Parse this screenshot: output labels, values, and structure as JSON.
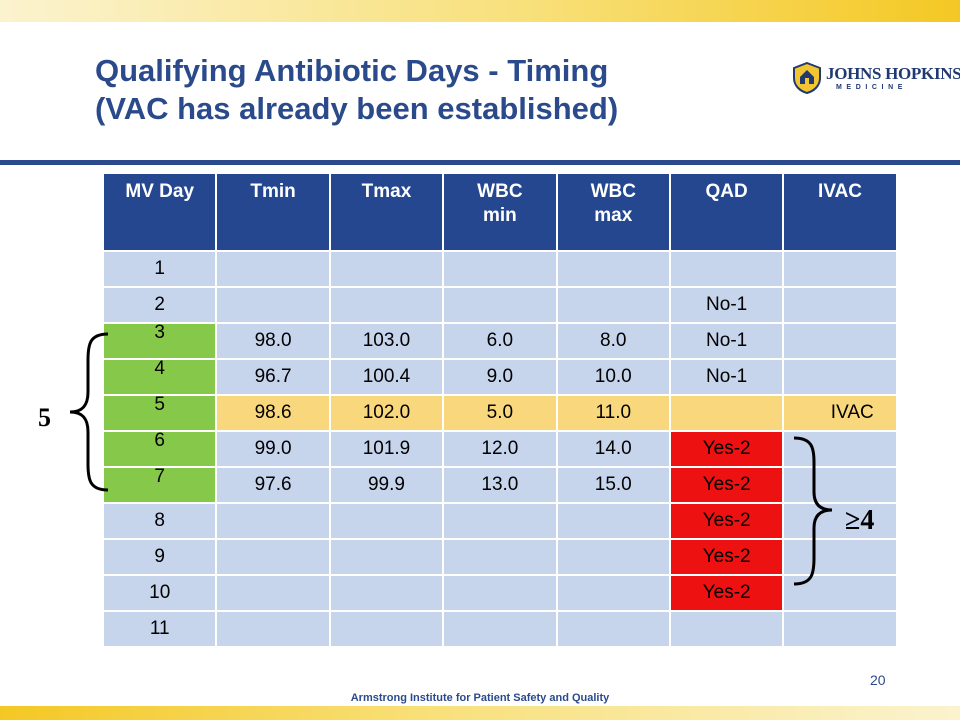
{
  "slide": {
    "title_line1": "Qualifying Antibiotic Days - Timing",
    "title_line2": "(VAC has already been established)",
    "logo_name": "JOHNS HOPKINS",
    "logo_sub": "MEDICINE",
    "footer": "Armstrong Institute for Patient Safety and Quality",
    "page_number": "20",
    "brace_left_label": "5",
    "brace_right_label": "≥4"
  },
  "table": {
    "headers": [
      "MV Day",
      "Tmin",
      "Tmax",
      "WBC\nmin",
      "WBC\nmax",
      "QAD",
      "IVAC"
    ],
    "rows": [
      {
        "mv_day": "1",
        "tmin": "",
        "tmax": "",
        "wbc_min": "",
        "wbc_max": "",
        "qad": "",
        "ivac": ""
      },
      {
        "mv_day": "2",
        "tmin": "",
        "tmax": "",
        "wbc_min": "",
        "wbc_max": "",
        "qad": "No-1",
        "ivac": ""
      },
      {
        "mv_day": "3",
        "tmin": "98.0",
        "tmax": "103.0",
        "wbc_min": "6.0",
        "wbc_max": "8.0",
        "qad": "No-1",
        "ivac": ""
      },
      {
        "mv_day": "4",
        "tmin": "96.7",
        "tmax": "100.4",
        "wbc_min": "9.0",
        "wbc_max": "10.0",
        "qad": "No-1",
        "ivac": ""
      },
      {
        "mv_day": "5",
        "tmin": "98.6",
        "tmax": "102.0",
        "wbc_min": "5.0",
        "wbc_max": "11.0",
        "qad": "",
        "ivac": "IVAC"
      },
      {
        "mv_day": "6",
        "tmin": "99.0",
        "tmax": "101.9",
        "wbc_min": "12.0",
        "wbc_max": "14.0",
        "qad": "Yes-2",
        "ivac": ""
      },
      {
        "mv_day": "7",
        "tmin": "97.6",
        "tmax": "99.9",
        "wbc_min": "13.0",
        "wbc_max": "15.0",
        "qad": "Yes-2",
        "ivac": ""
      },
      {
        "mv_day": "8",
        "tmin": "",
        "tmax": "",
        "wbc_min": "",
        "wbc_max": "",
        "qad": "Yes-2",
        "ivac": ""
      },
      {
        "mv_day": "9",
        "tmin": "",
        "tmax": "",
        "wbc_min": "",
        "wbc_max": "",
        "qad": "Yes-2",
        "ivac": ""
      },
      {
        "mv_day": "10",
        "tmin": "",
        "tmax": "",
        "wbc_min": "",
        "wbc_max": "",
        "qad": "Yes-2",
        "ivac": ""
      },
      {
        "mv_day": "11",
        "tmin": "",
        "tmax": "",
        "wbc_min": "",
        "wbc_max": "",
        "qad": "",
        "ivac": ""
      }
    ]
  },
  "colors": {
    "header_blue": "#24478f",
    "cell_blue": "#c6d4ec",
    "green_day": "#86c84a",
    "vac_row_yellow": "#f9d77d",
    "qad_yes_red": "#ee1111",
    "title_blue": "#2b4a8c"
  }
}
